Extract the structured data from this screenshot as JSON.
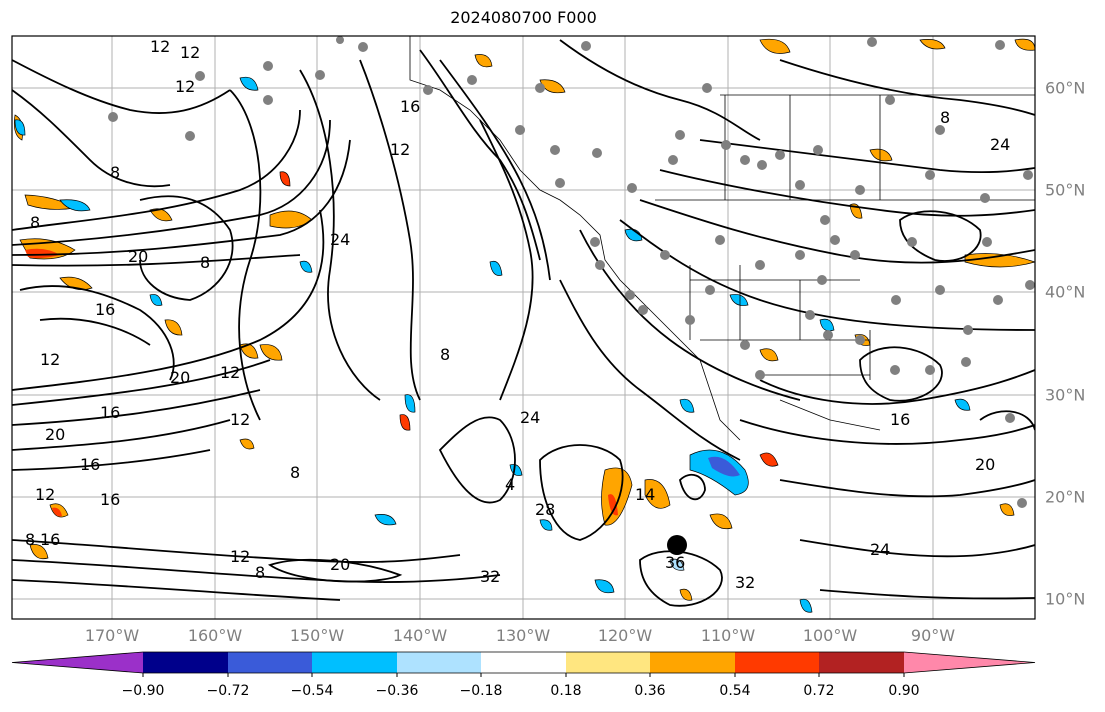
{
  "title": "2024080700 F000",
  "lon_ticks": [
    "170°W",
    "160°W",
    "150°W",
    "140°W",
    "130°W",
    "120°W",
    "110°W",
    "100°W",
    "90°W"
  ],
  "lat_ticks": [
    "60°N",
    "50°N",
    "40°N",
    "30°N",
    "20°N",
    "10°N"
  ],
  "colorbar": {
    "labels": [
      "−0.90",
      "−0.72",
      "−0.54",
      "−0.36",
      "−0.18",
      "0.18",
      "0.36",
      "0.54",
      "0.72",
      "0.90"
    ],
    "colors": [
      "#9b30c9",
      "#00008b",
      "#3a5bd9",
      "#00bfff",
      "#aee2ff",
      "#ffffff",
      "#ffe680",
      "#ffa500",
      "#ff3a00",
      "#b22222",
      "#ff88aa"
    ]
  },
  "contour_labels": [
    "12",
    "12",
    "12",
    "16",
    "12",
    "8",
    "8",
    "24",
    "20",
    "8",
    "16",
    "12",
    "12",
    "20",
    "16",
    "20",
    "16",
    "16",
    "12",
    "8",
    "12",
    "8",
    "24",
    "4",
    "28",
    "14",
    "32",
    "36",
    "32",
    "24",
    "20",
    "8",
    "16",
    "20",
    "8",
    "12",
    "8",
    "24",
    "16"
  ]
}
